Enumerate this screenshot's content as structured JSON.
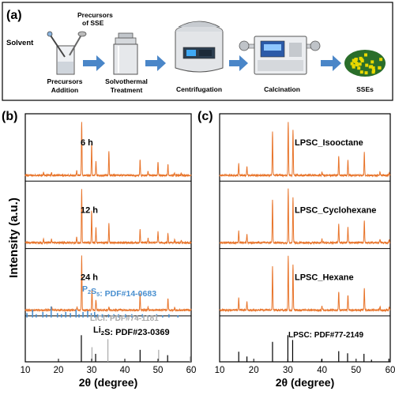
{
  "panel_labels": {
    "a": "(a)",
    "b": "(b)",
    "c": "(c)"
  },
  "schematic": {
    "steps": [
      {
        "id": "precursors",
        "label_line1": "Precursors",
        "label_line2": "Addition"
      },
      {
        "id": "solvothermal",
        "label_line1": "Solvothermal",
        "label_line2": "Treatment"
      },
      {
        "id": "centrifugation",
        "label_line1": "Centrifugation",
        "label_line2": ""
      },
      {
        "id": "calcination",
        "label_line1": "Calcination",
        "label_line2": ""
      },
      {
        "id": "sses",
        "label_line1": "SSEs",
        "label_line2": ""
      }
    ],
    "solvent_label": "Solvent",
    "precursors_sse_line1": "Precursors",
    "precursors_sse_line2": "of SSE",
    "colors": {
      "arrow": "#4a86c8",
      "machine": "#c9ccd1",
      "crystal_a": "#e8d800",
      "crystal_b": "#2a6e2a"
    }
  },
  "chart_data": [
    {
      "panel": "b",
      "type": "line",
      "xlabel": "2θ (degree)",
      "ylabel": "Intensity (a.u.)",
      "xlim": [
        10,
        60
      ],
      "xticks": [
        10,
        20,
        30,
        40,
        50,
        60
      ],
      "series_color": "#e8742a",
      "series": [
        {
          "name": "6 h",
          "peaks": [
            [
              15.5,
              0.05
            ],
            [
              17.9,
              0.05
            ],
            [
              25.5,
              0.08
            ],
            [
              27.0,
              1.0
            ],
            [
              30.0,
              0.6
            ],
            [
              31.3,
              0.25
            ],
            [
              35.2,
              0.45
            ],
            [
              44.6,
              0.3
            ],
            [
              47.0,
              0.08
            ],
            [
              50.0,
              0.25
            ],
            [
              53.0,
              0.2
            ],
            [
              55.0,
              0.05
            ],
            [
              57.0,
              0.04
            ]
          ]
        },
        {
          "name": "12 h",
          "peaks": [
            [
              15.5,
              0.06
            ],
            [
              17.9,
              0.06
            ],
            [
              25.5,
              0.1
            ],
            [
              27.0,
              1.0
            ],
            [
              30.0,
              0.6
            ],
            [
              31.3,
              0.28
            ],
            [
              35.2,
              0.35
            ],
            [
              44.6,
              0.25
            ],
            [
              47.0,
              0.08
            ],
            [
              50.0,
              0.2
            ],
            [
              53.0,
              0.18
            ],
            [
              55.0,
              0.05
            ],
            [
              57.0,
              0.04
            ]
          ]
        },
        {
          "name": "24 h",
          "peaks": [
            [
              18.0,
              0.05
            ],
            [
              25.6,
              0.06
            ],
            [
              27.0,
              1.0
            ],
            [
              30.1,
              0.4
            ],
            [
              31.3,
              0.2
            ],
            [
              35.2,
              0.06
            ],
            [
              44.6,
              0.3
            ],
            [
              47.0,
              0.05
            ],
            [
              53.0,
              0.22
            ],
            [
              55.0,
              0.05
            ]
          ]
        }
      ],
      "references": [
        {
          "name": "P2S5: PDF#14-0683",
          "color": "#4a90d0",
          "lines": [
            [
              10.5,
              0.4
            ],
            [
              12.2,
              0.7
            ],
            [
              13.3,
              0.3
            ],
            [
              15.3,
              0.5
            ],
            [
              16.4,
              0.3
            ],
            [
              17.8,
              1.0
            ],
            [
              19.7,
              0.4
            ],
            [
              20.9,
              0.3
            ],
            [
              22.2,
              0.5
            ],
            [
              23.6,
              0.4
            ],
            [
              25.3,
              0.7
            ],
            [
              26.2,
              0.3
            ],
            [
              27.4,
              0.5
            ],
            [
              28.8,
              0.6
            ],
            [
              29.9,
              0.4
            ],
            [
              30.9,
              0.5
            ],
            [
              31.8,
              0.3
            ],
            [
              33.2,
              0.3
            ],
            [
              35.1,
              0.3
            ],
            [
              36.7,
              0.3
            ],
            [
              38.1,
              0.3
            ],
            [
              40.2,
              0.3
            ],
            [
              42.1,
              0.3
            ],
            [
              43.7,
              0.2
            ],
            [
              45.3,
              0.3
            ],
            [
              47.0,
              0.2
            ],
            [
              49.6,
              0.3
            ],
            [
              51.4,
              0.2
            ],
            [
              53.3,
              0.3
            ],
            [
              56.0,
              0.2
            ]
          ]
        },
        {
          "name": "LiCl: PDF#74-1181",
          "color": "#a9a9a9",
          "lines": [
            [
              30.1,
              0.55
            ],
            [
              34.9,
              0.85
            ],
            [
              50.2,
              0.45
            ],
            [
              59.7,
              0.2
            ]
          ]
        },
        {
          "name": "Li2S: PDF#23-0369",
          "color": "#000000",
          "lines": [
            [
              26.9,
              1.0
            ],
            [
              31.2,
              0.3
            ],
            [
              44.6,
              0.45
            ],
            [
              52.9,
              0.25
            ]
          ]
        }
      ]
    },
    {
      "panel": "c",
      "type": "line",
      "xlabel": "2θ (degree)",
      "xlim": [
        10,
        60
      ],
      "xticks": [
        10,
        20,
        30,
        40,
        50,
        60
      ],
      "series_color": "#e8742a",
      "series": [
        {
          "name": "LPSC_Isooctane",
          "peaks": [
            [
              15.6,
              0.22
            ],
            [
              18.0,
              0.15
            ],
            [
              25.5,
              0.8
            ],
            [
              30.1,
              1.0
            ],
            [
              31.5,
              0.85
            ],
            [
              40.0,
              0.07
            ],
            [
              44.9,
              0.35
            ],
            [
              47.6,
              0.28
            ],
            [
              52.4,
              0.42
            ],
            [
              57.0,
              0.07
            ],
            [
              59.7,
              0.05
            ]
          ]
        },
        {
          "name": "LPSC_Cyclohexane",
          "peaks": [
            [
              15.6,
              0.22
            ],
            [
              18.0,
              0.15
            ],
            [
              25.5,
              0.8
            ],
            [
              30.1,
              1.0
            ],
            [
              31.5,
              0.85
            ],
            [
              40.0,
              0.07
            ],
            [
              44.9,
              0.35
            ],
            [
              47.6,
              0.28
            ],
            [
              52.4,
              0.42
            ],
            [
              57.0,
              0.07
            ],
            [
              59.7,
              0.05
            ]
          ]
        },
        {
          "name": "LPSC_Hexane",
          "peaks": [
            [
              15.6,
              0.22
            ],
            [
              18.0,
              0.15
            ],
            [
              25.5,
              0.8
            ],
            [
              30.1,
              1.0
            ],
            [
              31.5,
              0.85
            ],
            [
              40.0,
              0.07
            ],
            [
              44.9,
              0.35
            ],
            [
              47.6,
              0.28
            ],
            [
              52.4,
              0.42
            ],
            [
              57.0,
              0.07
            ],
            [
              59.7,
              0.05
            ]
          ]
        }
      ],
      "references": [
        {
          "name": "LPSC: PDF#77-2149",
          "color": "#000000",
          "lines": [
            [
              15.6,
              0.38
            ],
            [
              18.0,
              0.2
            ],
            [
              25.5,
              0.75
            ],
            [
              30.0,
              1.0
            ],
            [
              31.4,
              0.82
            ],
            [
              39.9,
              0.1
            ],
            [
              44.9,
              0.4
            ],
            [
              47.5,
              0.32
            ],
            [
              52.3,
              0.3
            ],
            [
              54.5,
              0.08
            ],
            [
              59.6,
              0.12
            ]
          ]
        }
      ]
    }
  ]
}
